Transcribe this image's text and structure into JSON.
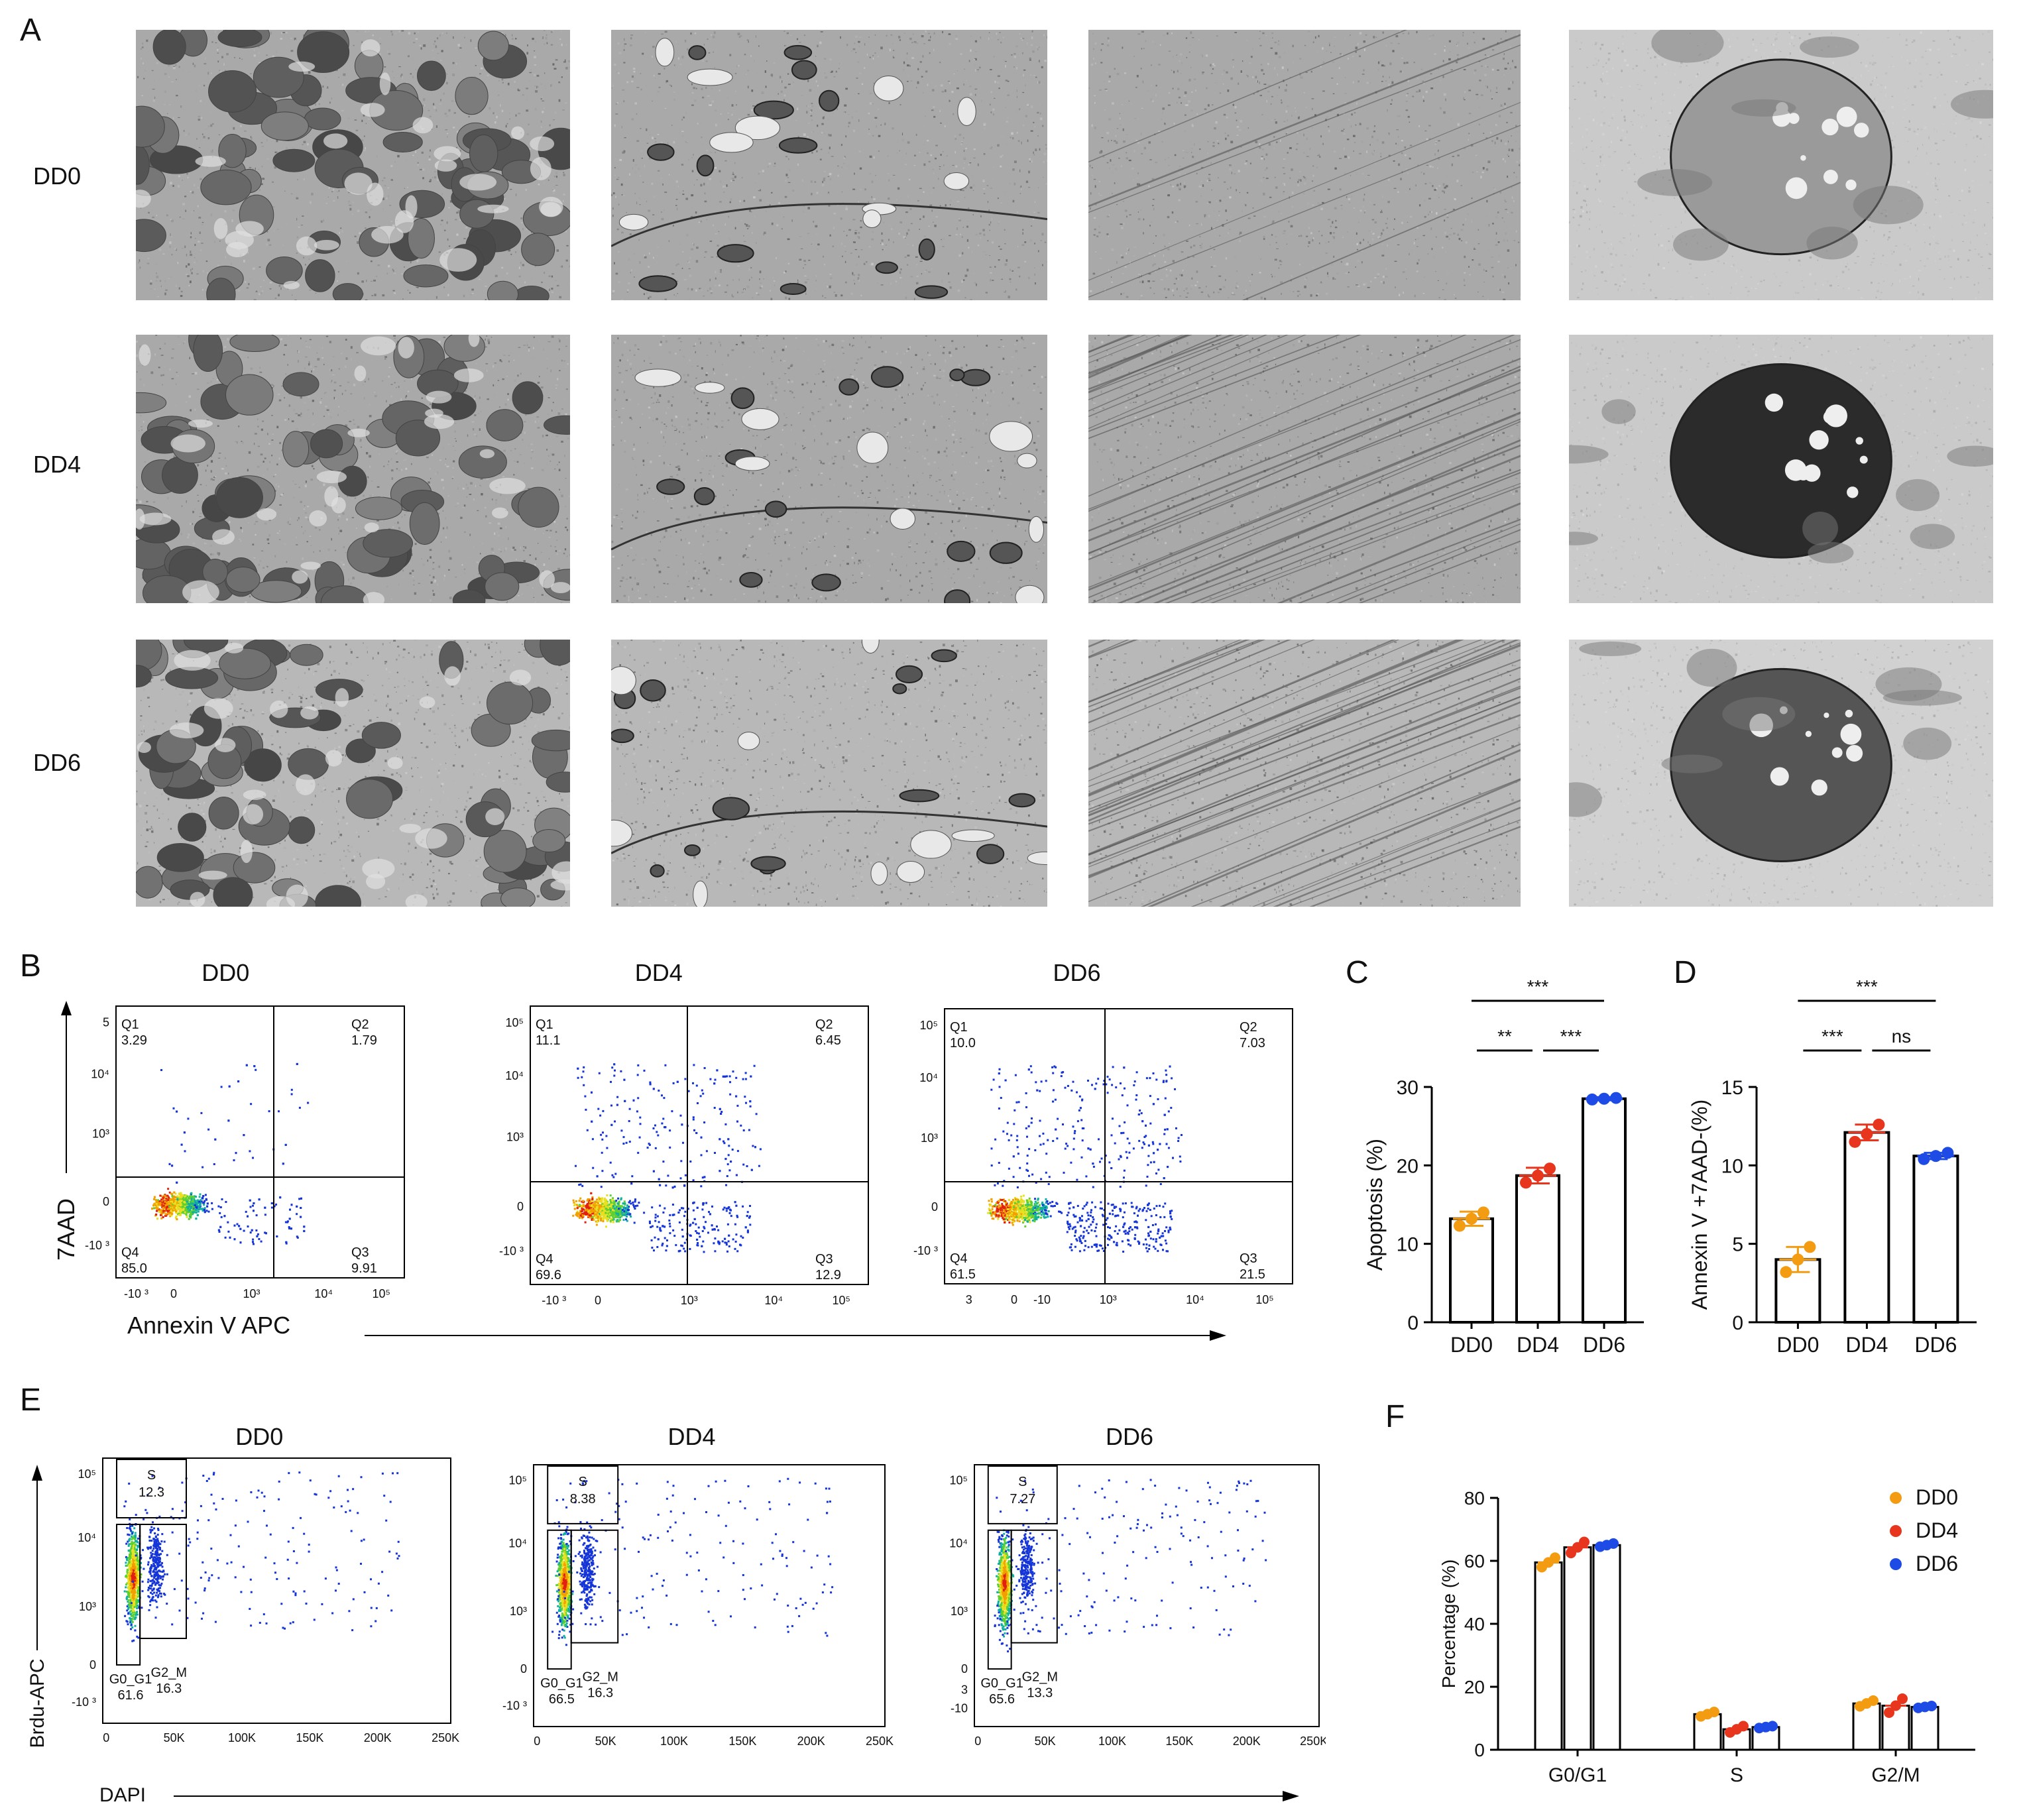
{
  "panel_labels": {
    "A": "A",
    "B": "B",
    "C": "C",
    "D": "D",
    "E": "E",
    "F": "F"
  },
  "em_rows": [
    "DD0",
    "DD4",
    "DD6"
  ],
  "colors": {
    "DD0": "#F39C12",
    "DD4": "#E8351E",
    "DD6": "#1E4BE6",
    "axis": "#000000",
    "flow_dot": "#1535D8"
  },
  "flow_apoptosis": {
    "panels": [
      {
        "title": "DD0",
        "q1_label": "Q1",
        "q1": "3.29",
        "q2_label": "Q2",
        "q2": "1.79",
        "q3_label": "Q3",
        "q3": "9.91",
        "q4_label": "Q4",
        "q4": "85.0",
        "yticks": [
          "5",
          "10⁴",
          "10³",
          "0",
          "-10 ³"
        ],
        "xticks": [
          "-10 ³",
          "0",
          "10³",
          "10⁴",
          "10⁵"
        ]
      },
      {
        "title": "DD4",
        "q1_label": "Q1",
        "q1": "11.1",
        "q2_label": "Q2",
        "q2": "6.45",
        "q3_label": "Q3",
        "q3": "12.9",
        "q4_label": "Q4",
        "q4": "69.6",
        "yticks": [
          "10⁵",
          "10⁴",
          "10³",
          "0",
          "-10 ³"
        ],
        "xticks": [
          "-10 ³",
          "0",
          "10³",
          "10⁴",
          "10⁵"
        ]
      },
      {
        "title": "DD6",
        "q1_label": "Q1",
        "q1": "10.0",
        "q2_label": "Q2",
        "q2": "7.03",
        "q3_label": "Q3",
        "q3": "21.5",
        "q4_label": "Q4",
        "q4": "61.5",
        "yticks": [
          "10⁵",
          "10⁴",
          "10³",
          "0",
          "-10 ³"
        ],
        "xticks": [
          "3",
          "0",
          "-10",
          "10³",
          "10⁴",
          "10⁵"
        ]
      }
    ],
    "ylabel": "7AAD",
    "xlabel": "Annexin V APC"
  },
  "flow_cycle": {
    "panels": [
      {
        "title": "DD0",
        "s_label": "S",
        "s": "12.3",
        "g0_label": "G0_G1",
        "g0": "61.6",
        "g2_label": "G2_M",
        "g2": "16.3",
        "yticks": [
          "10⁵",
          "10⁴",
          "10³",
          "0",
          "-10 ³"
        ]
      },
      {
        "title": "DD4",
        "s_label": "S",
        "s": "8.38",
        "g0_label": "G0_G1",
        "g0": "66.5",
        "g2_label": "G2_M",
        "g2": "16.3",
        "yticks": [
          "10⁵",
          "10⁴",
          "10³",
          "0",
          "-10 ³"
        ]
      },
      {
        "title": "DD6",
        "s_label": "S",
        "s": "7.27",
        "g0_label": "G0_G1",
        "g0": "65.6",
        "g2_label": "G2_M",
        "g2": "13.3",
        "yticks": [
          "10⁵",
          "10⁴",
          "10³",
          "0",
          "3",
          "-10"
        ]
      }
    ],
    "xticks": [
      "0",
      "50K",
      "100K",
      "150K",
      "200K",
      "250K"
    ],
    "ylabel": "Brdu-APC",
    "xlabel": "DAPI"
  },
  "chart_data": [
    {
      "type": "bar",
      "panel": "C",
      "categories": [
        "DD0",
        "DD4",
        "DD6"
      ],
      "values": [
        13.2,
        18.7,
        28.5
      ],
      "errors": [
        0.9,
        1.0,
        0.2
      ],
      "points": [
        [
          12.3,
          13.2,
          14.0
        ],
        [
          17.8,
          18.7,
          19.6
        ],
        [
          28.4,
          28.5,
          28.6
        ]
      ],
      "ylabel": "Apoptosis  (%)",
      "ylim": [
        0,
        30
      ],
      "yticks": [
        "0",
        "10",
        "20",
        "30"
      ],
      "significance": [
        {
          "from": "DD0",
          "to": "DD6",
          "label": "***"
        },
        {
          "from": "DD0",
          "to": "DD4",
          "label": "**"
        },
        {
          "from": "DD4",
          "to": "DD6",
          "label": "***"
        }
      ]
    },
    {
      "type": "bar",
      "panel": "D",
      "categories": [
        "DD0",
        "DD4",
        "DD6"
      ],
      "values": [
        4.0,
        12.1,
        10.6
      ],
      "errors": [
        0.8,
        0.5,
        0.2
      ],
      "points": [
        [
          3.2,
          4.0,
          4.8
        ],
        [
          11.5,
          12.0,
          12.6
        ],
        [
          10.4,
          10.6,
          10.8
        ]
      ],
      "ylabel": "Annexin V +7AAD-(%)",
      "ylim": [
        0,
        15
      ],
      "yticks": [
        "0",
        "5",
        "10",
        "15"
      ],
      "significance": [
        {
          "from": "DD0",
          "to": "DD6",
          "label": "***"
        },
        {
          "from": "DD0",
          "to": "DD4",
          "label": "***"
        },
        {
          "from": "DD4",
          "to": "DD6",
          "label": "ns"
        }
      ]
    },
    {
      "type": "bar",
      "panel": "F",
      "categories": [
        "G0/G1",
        "S",
        "G2/M"
      ],
      "series": [
        {
          "name": "DD0",
          "values": [
            59.5,
            11.3,
            14.7
          ],
          "points": [
            [
              58.0,
              59.5,
              61.0
            ],
            [
              10.6,
              11.3,
              12.0
            ],
            [
              13.8,
              14.7,
              15.6
            ]
          ]
        },
        {
          "name": "DD4",
          "values": [
            64.3,
            6.5,
            14.0
          ],
          "points": [
            [
              62.5,
              64.3,
              66.0
            ],
            [
              5.5,
              6.5,
              7.5
            ],
            [
              11.8,
              14.0,
              16.2
            ]
          ]
        },
        {
          "name": "DD6",
          "values": [
            65.0,
            7.2,
            13.6
          ],
          "points": [
            [
              64.5,
              65.0,
              65.5
            ],
            [
              6.9,
              7.2,
              7.5
            ],
            [
              13.3,
              13.6,
              13.9
            ]
          ]
        }
      ],
      "ylabel": "Percentage (%)",
      "ylim": [
        0,
        80
      ],
      "yticks": [
        "0",
        "20",
        "40",
        "60",
        "80"
      ],
      "legend": "top-right"
    }
  ]
}
